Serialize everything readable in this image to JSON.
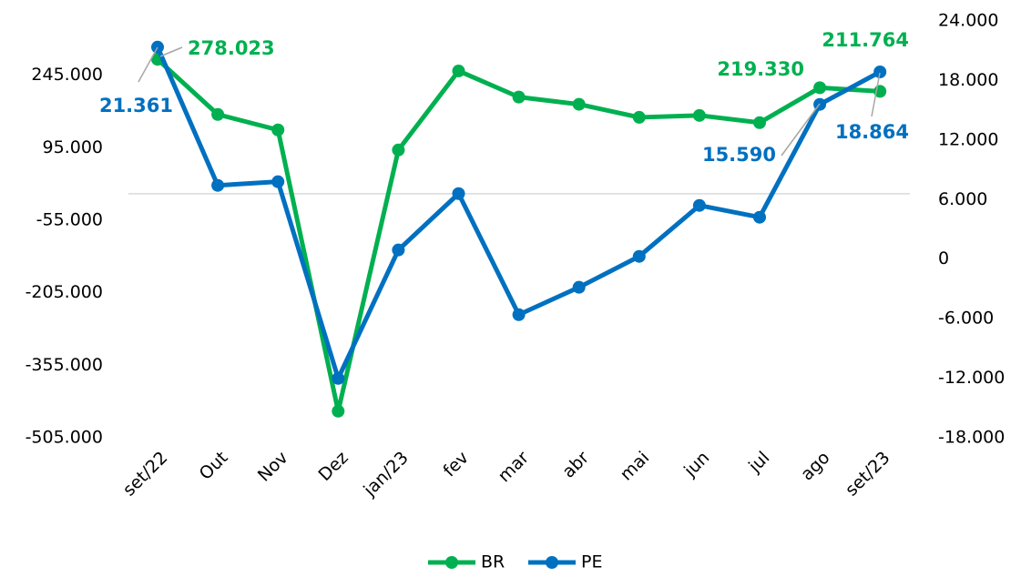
{
  "chart_data": {
    "type": "line",
    "categories": [
      "set/22",
      "Out",
      "Nov",
      "Dez",
      "jan/23",
      "fev",
      "mar",
      "abr",
      "mai",
      "jun",
      "jul",
      "ago",
      "set/23"
    ],
    "series": [
      {
        "name": "BR",
        "color": "#00b050",
        "axis": "y",
        "values": [
          278023,
          164000,
          132000,
          -450000,
          90500,
          254000,
          200000,
          185000,
          158000,
          162000,
          147000,
          219330,
          211764
        ],
        "value_labels": [
          "278.023",
          null,
          null,
          null,
          null,
          null,
          null,
          null,
          null,
          null,
          null,
          "219.330",
          "211.764"
        ]
      },
      {
        "name": "PE",
        "color": "#0070c0",
        "axis": "y2",
        "values": [
          21361,
          7430,
          7800,
          -12020,
          920,
          6600,
          -5600,
          -2840,
          275,
          5410,
          4220,
          15590,
          18864
        ],
        "value_labels": [
          "21.361",
          null,
          null,
          null,
          null,
          null,
          null,
          null,
          null,
          null,
          null,
          "15.590",
          "18.864"
        ]
      }
    ],
    "ylim": [
      -505000,
      357500
    ],
    "yticks": [
      {
        "value": -505000,
        "label": "-505.000"
      },
      {
        "value": -355000,
        "label": "-355.000"
      },
      {
        "value": -205000,
        "label": "-205.000"
      },
      {
        "value": -55000,
        "label": "-55.000"
      },
      {
        "value": 95000,
        "label": "95.000"
      },
      {
        "value": 245000,
        "label": "245.000"
      }
    ],
    "y2lim": [
      -18000,
      24000
    ],
    "y2ticks": [
      {
        "value": -18000,
        "label": "-18.000"
      },
      {
        "value": -12000,
        "label": "-12.000"
      },
      {
        "value": -6000,
        "label": "-6.000"
      },
      0,
      {
        "value": 6000,
        "label": "6.000"
      },
      {
        "value": 12000,
        "label": "12.000"
      },
      {
        "value": 18000,
        "label": "18.000"
      },
      {
        "value": 24000,
        "label": "24.000"
      }
    ],
    "legend": "bottom"
  }
}
